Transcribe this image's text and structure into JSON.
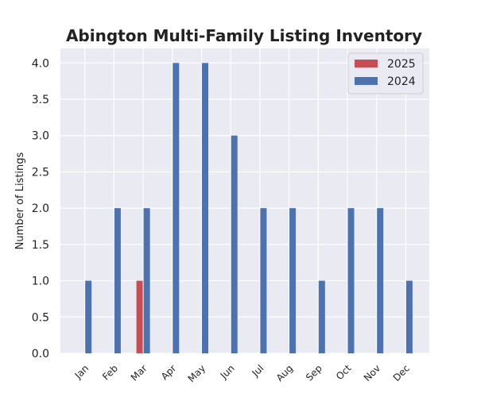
{
  "chart_data": {
    "type": "bar",
    "title": "Abington Multi-Family Listing Inventory",
    "xlabel": "",
    "ylabel": "Number of Listings",
    "categories": [
      "Jan",
      "Feb",
      "Mar",
      "Apr",
      "May",
      "Jun",
      "Jul",
      "Aug",
      "Sep",
      "Oct",
      "Nov",
      "Dec"
    ],
    "series": [
      {
        "name": "2025",
        "color": "#c44e52",
        "values": [
          0,
          0,
          1,
          null,
          null,
          null,
          null,
          null,
          null,
          null,
          null,
          null
        ]
      },
      {
        "name": "2024",
        "color": "#4c72b0",
        "values": [
          1,
          2,
          2,
          4,
          4,
          3,
          2,
          2,
          1,
          2,
          2,
          1
        ]
      }
    ],
    "ylim": [
      0,
      4.2
    ],
    "yticks": [
      "0.0",
      "0.5",
      "1.0",
      "1.5",
      "2.0",
      "2.5",
      "3.0",
      "3.5",
      "4.0"
    ],
    "grid": true,
    "legend_position": "top-right",
    "background": "#eaeaf2"
  }
}
